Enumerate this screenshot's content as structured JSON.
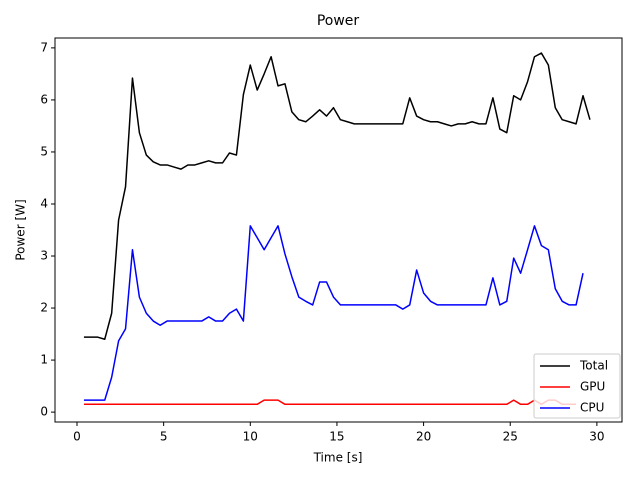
{
  "chart_data": {
    "type": "line",
    "title": "Power",
    "x_label": "Time [s]",
    "y_label": "Power [W]",
    "x": [
      0.4,
      0.8,
      1.2,
      1.6,
      2.0,
      2.4,
      2.8,
      3.2,
      3.6,
      4.0,
      4.4,
      4.8,
      5.2,
      5.6,
      6.0,
      6.4,
      6.8,
      7.2,
      7.6,
      8.0,
      8.4,
      8.8,
      9.2,
      9.6,
      10.0,
      10.4,
      10.8,
      11.2,
      11.6,
      12.0,
      12.4,
      12.8,
      13.2,
      13.6,
      14.0,
      14.4,
      14.8,
      15.2,
      15.6,
      16.0,
      16.4,
      16.8,
      17.2,
      17.6,
      18.0,
      18.4,
      18.8,
      19.2,
      19.6,
      20.0,
      20.4,
      20.8,
      21.2,
      21.6,
      22.0,
      22.4,
      22.8,
      23.2,
      23.6,
      24.0,
      24.4,
      24.8,
      25.2,
      25.6,
      26.0,
      26.4,
      26.8,
      27.2,
      27.6,
      28.0,
      28.4,
      28.8,
      29.2,
      29.6
    ],
    "series": [
      {
        "name": "Total",
        "color": "#000000",
        "values": [
          1.44,
          1.44,
          1.44,
          1.4,
          1.9,
          3.69,
          4.33,
          6.42,
          5.37,
          4.94,
          4.81,
          4.75,
          4.75,
          4.71,
          4.67,
          4.75,
          4.75,
          4.79,
          4.83,
          4.79,
          4.79,
          4.98,
          4.94,
          6.1,
          6.67,
          6.19,
          6.5,
          6.83,
          6.27,
          6.31,
          5.77,
          5.62,
          5.58,
          5.69,
          5.81,
          5.69,
          5.85,
          5.62,
          5.58,
          5.54,
          5.54,
          5.54,
          5.54,
          5.54,
          5.54,
          5.54,
          5.54,
          6.04,
          5.69,
          5.62,
          5.58,
          5.58,
          5.54,
          5.5,
          5.54,
          5.54,
          5.58,
          5.54,
          5.54,
          6.04,
          5.44,
          5.37,
          6.08,
          6.0,
          6.35,
          6.83,
          6.9,
          6.67,
          5.85,
          5.62,
          5.58,
          5.54,
          6.08,
          5.62
        ]
      },
      {
        "name": "GPU",
        "color": "#ff0000",
        "values": [
          0.15,
          0.15,
          0.15,
          0.15,
          0.15,
          0.15,
          0.15,
          0.15,
          0.15,
          0.15,
          0.15,
          0.15,
          0.15,
          0.15,
          0.15,
          0.15,
          0.15,
          0.15,
          0.15,
          0.15,
          0.15,
          0.15,
          0.15,
          0.15,
          0.15,
          0.15,
          0.23,
          0.23,
          0.23,
          0.15,
          0.15,
          0.15,
          0.15,
          0.15,
          0.15,
          0.15,
          0.15,
          0.15,
          0.15,
          0.15,
          0.15,
          0.15,
          0.15,
          0.15,
          0.15,
          0.15,
          0.15,
          0.15,
          0.15,
          0.15,
          0.15,
          0.15,
          0.15,
          0.15,
          0.15,
          0.15,
          0.15,
          0.15,
          0.15,
          0.15,
          0.15,
          0.15,
          0.23,
          0.15,
          0.15,
          0.23,
          0.15,
          0.23,
          0.23,
          0.15,
          0.15,
          0.15,
          null,
          null
        ]
      },
      {
        "name": "CPU",
        "color": "#0000ff",
        "values": [
          0.23,
          0.23,
          0.23,
          0.23,
          0.67,
          1.37,
          1.6,
          3.12,
          2.21,
          1.9,
          1.75,
          1.67,
          1.75,
          1.75,
          1.75,
          1.75,
          1.75,
          1.75,
          1.83,
          1.75,
          1.75,
          1.9,
          1.98,
          1.75,
          3.58,
          3.35,
          3.12,
          3.35,
          3.58,
          3.04,
          2.6,
          2.21,
          2.13,
          2.06,
          2.5,
          2.5,
          2.21,
          2.06,
          2.06,
          2.06,
          2.06,
          2.06,
          2.06,
          2.06,
          2.06,
          2.06,
          1.98,
          2.06,
          2.73,
          2.29,
          2.13,
          2.06,
          2.06,
          2.06,
          2.06,
          2.06,
          2.06,
          2.06,
          2.06,
          2.58,
          2.06,
          2.13,
          2.96,
          2.67,
          3.12,
          3.58,
          3.2,
          3.12,
          2.37,
          2.13,
          2.06,
          2.06,
          2.67,
          null
        ]
      }
    ],
    "xlim": [
      -1.27,
      31.45
    ],
    "ylim": [
      -0.19,
      7.19
    ],
    "xticks": [
      0,
      5,
      10,
      15,
      20,
      25,
      30
    ],
    "yticks": [
      0,
      1,
      2,
      3,
      4,
      5,
      6,
      7
    ],
    "legend_position": "lower right"
  }
}
